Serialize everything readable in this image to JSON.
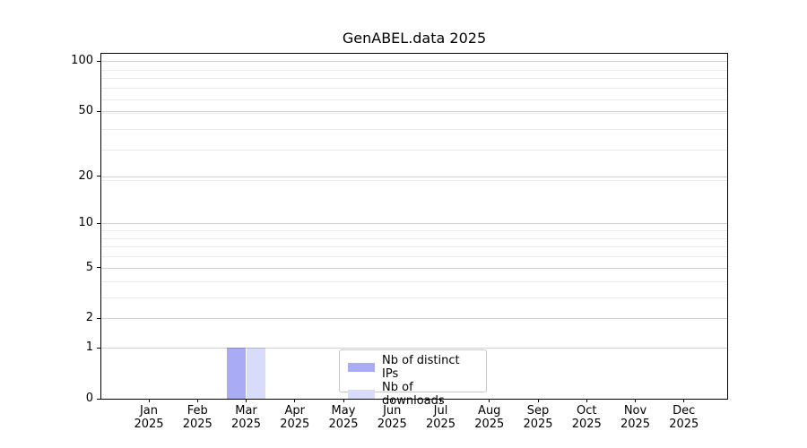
{
  "chart_data": {
    "type": "bar",
    "title": "GenABEL.data 2025",
    "x_months": [
      "Jan",
      "Feb",
      "Mar",
      "Apr",
      "May",
      "Jun",
      "Jul",
      "Aug",
      "Sep",
      "Oct",
      "Nov",
      "Dec"
    ],
    "x_year": "2025",
    "y_scale": "log1p",
    "ylim": [
      0,
      111
    ],
    "y_ticks": [
      0,
      1,
      2,
      5,
      10,
      20,
      50,
      100
    ],
    "y_minor_ticks": [
      3,
      4,
      6,
      7,
      8,
      9,
      19,
      29,
      39,
      49,
      59,
      69,
      79,
      89
    ],
    "grid": true,
    "legend_position": "lower center",
    "series": [
      {
        "name": "Nb of distinct IPs",
        "color": "#a9abf4",
        "values": [
          0,
          0,
          1,
          0,
          0,
          0,
          0,
          0,
          0,
          0,
          0,
          0
        ]
      },
      {
        "name": "Nb of downloads",
        "color": "#d8dbfa",
        "values": [
          0,
          0,
          1,
          0,
          0,
          0,
          0,
          0,
          0,
          0,
          0,
          0
        ]
      }
    ],
    "colors": {
      "grid_major": "#cfcfcf",
      "grid_minor": "#e9e9e9",
      "spine": "#000000",
      "legend_border": "#c8c8c8",
      "background": "#ffffff"
    }
  }
}
